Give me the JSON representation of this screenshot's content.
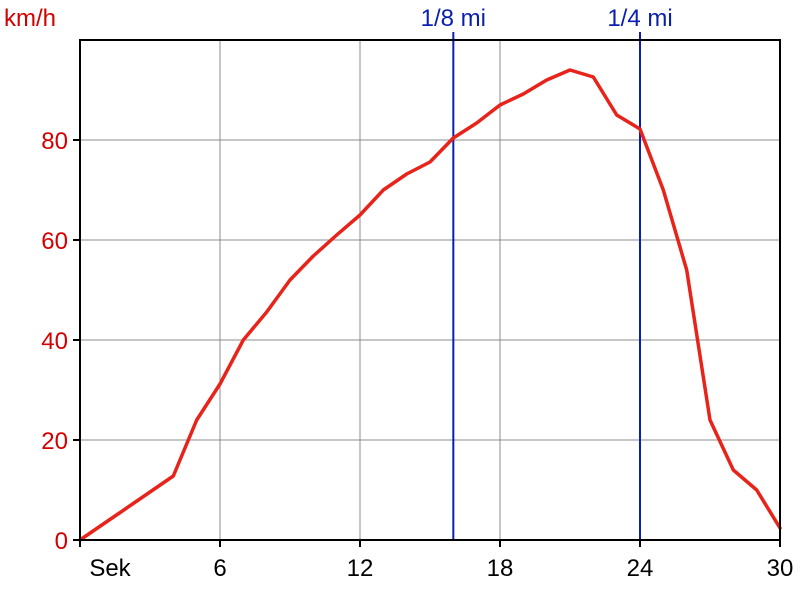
{
  "chart_data": {
    "type": "line",
    "ylabel": "km/h",
    "x_first_tick_label": "Sek",
    "x_ticks": [
      6,
      12,
      18,
      24,
      30
    ],
    "y_ticks": [
      0,
      20,
      40,
      60,
      80
    ],
    "xlim": [
      0,
      30
    ],
    "ylim": [
      0,
      100
    ],
    "grid": true,
    "markers": [
      {
        "label": "1/8 mi",
        "x": 16
      },
      {
        "label": "1/4 mi",
        "x": 24
      }
    ],
    "series": [
      {
        "color": "#e8231a",
        "points": [
          [
            0,
            0
          ],
          [
            1,
            3.2
          ],
          [
            2,
            6.4
          ],
          [
            3,
            9.6
          ],
          [
            4,
            12.8
          ],
          [
            5,
            24
          ],
          [
            6,
            31.2
          ],
          [
            7,
            40
          ],
          [
            8,
            45.6
          ],
          [
            9,
            52
          ],
          [
            10,
            56.8
          ],
          [
            11,
            61
          ],
          [
            12,
            65
          ],
          [
            13,
            70
          ],
          [
            14,
            73.2
          ],
          [
            15,
            75.6
          ],
          [
            16,
            80.4
          ],
          [
            17,
            83.4
          ],
          [
            18,
            87
          ],
          [
            19,
            89.2
          ],
          [
            20,
            92
          ],
          [
            21,
            94
          ],
          [
            22,
            92.6
          ],
          [
            23,
            85
          ],
          [
            24,
            82.2
          ],
          [
            25,
            70
          ],
          [
            26,
            54
          ],
          [
            27,
            24
          ],
          [
            28,
            14
          ],
          [
            29,
            10
          ],
          [
            30,
            2.4
          ]
        ],
        "x_scale_note": "x values in seconds (ticks every 6 s)"
      }
    ],
    "colors": {
      "series_line": "#e8231a",
      "axis_labels_y": "#d40000",
      "marker_lines": "#0a1fb0",
      "grid": "#8c8c8c",
      "axis": "#000000"
    }
  }
}
